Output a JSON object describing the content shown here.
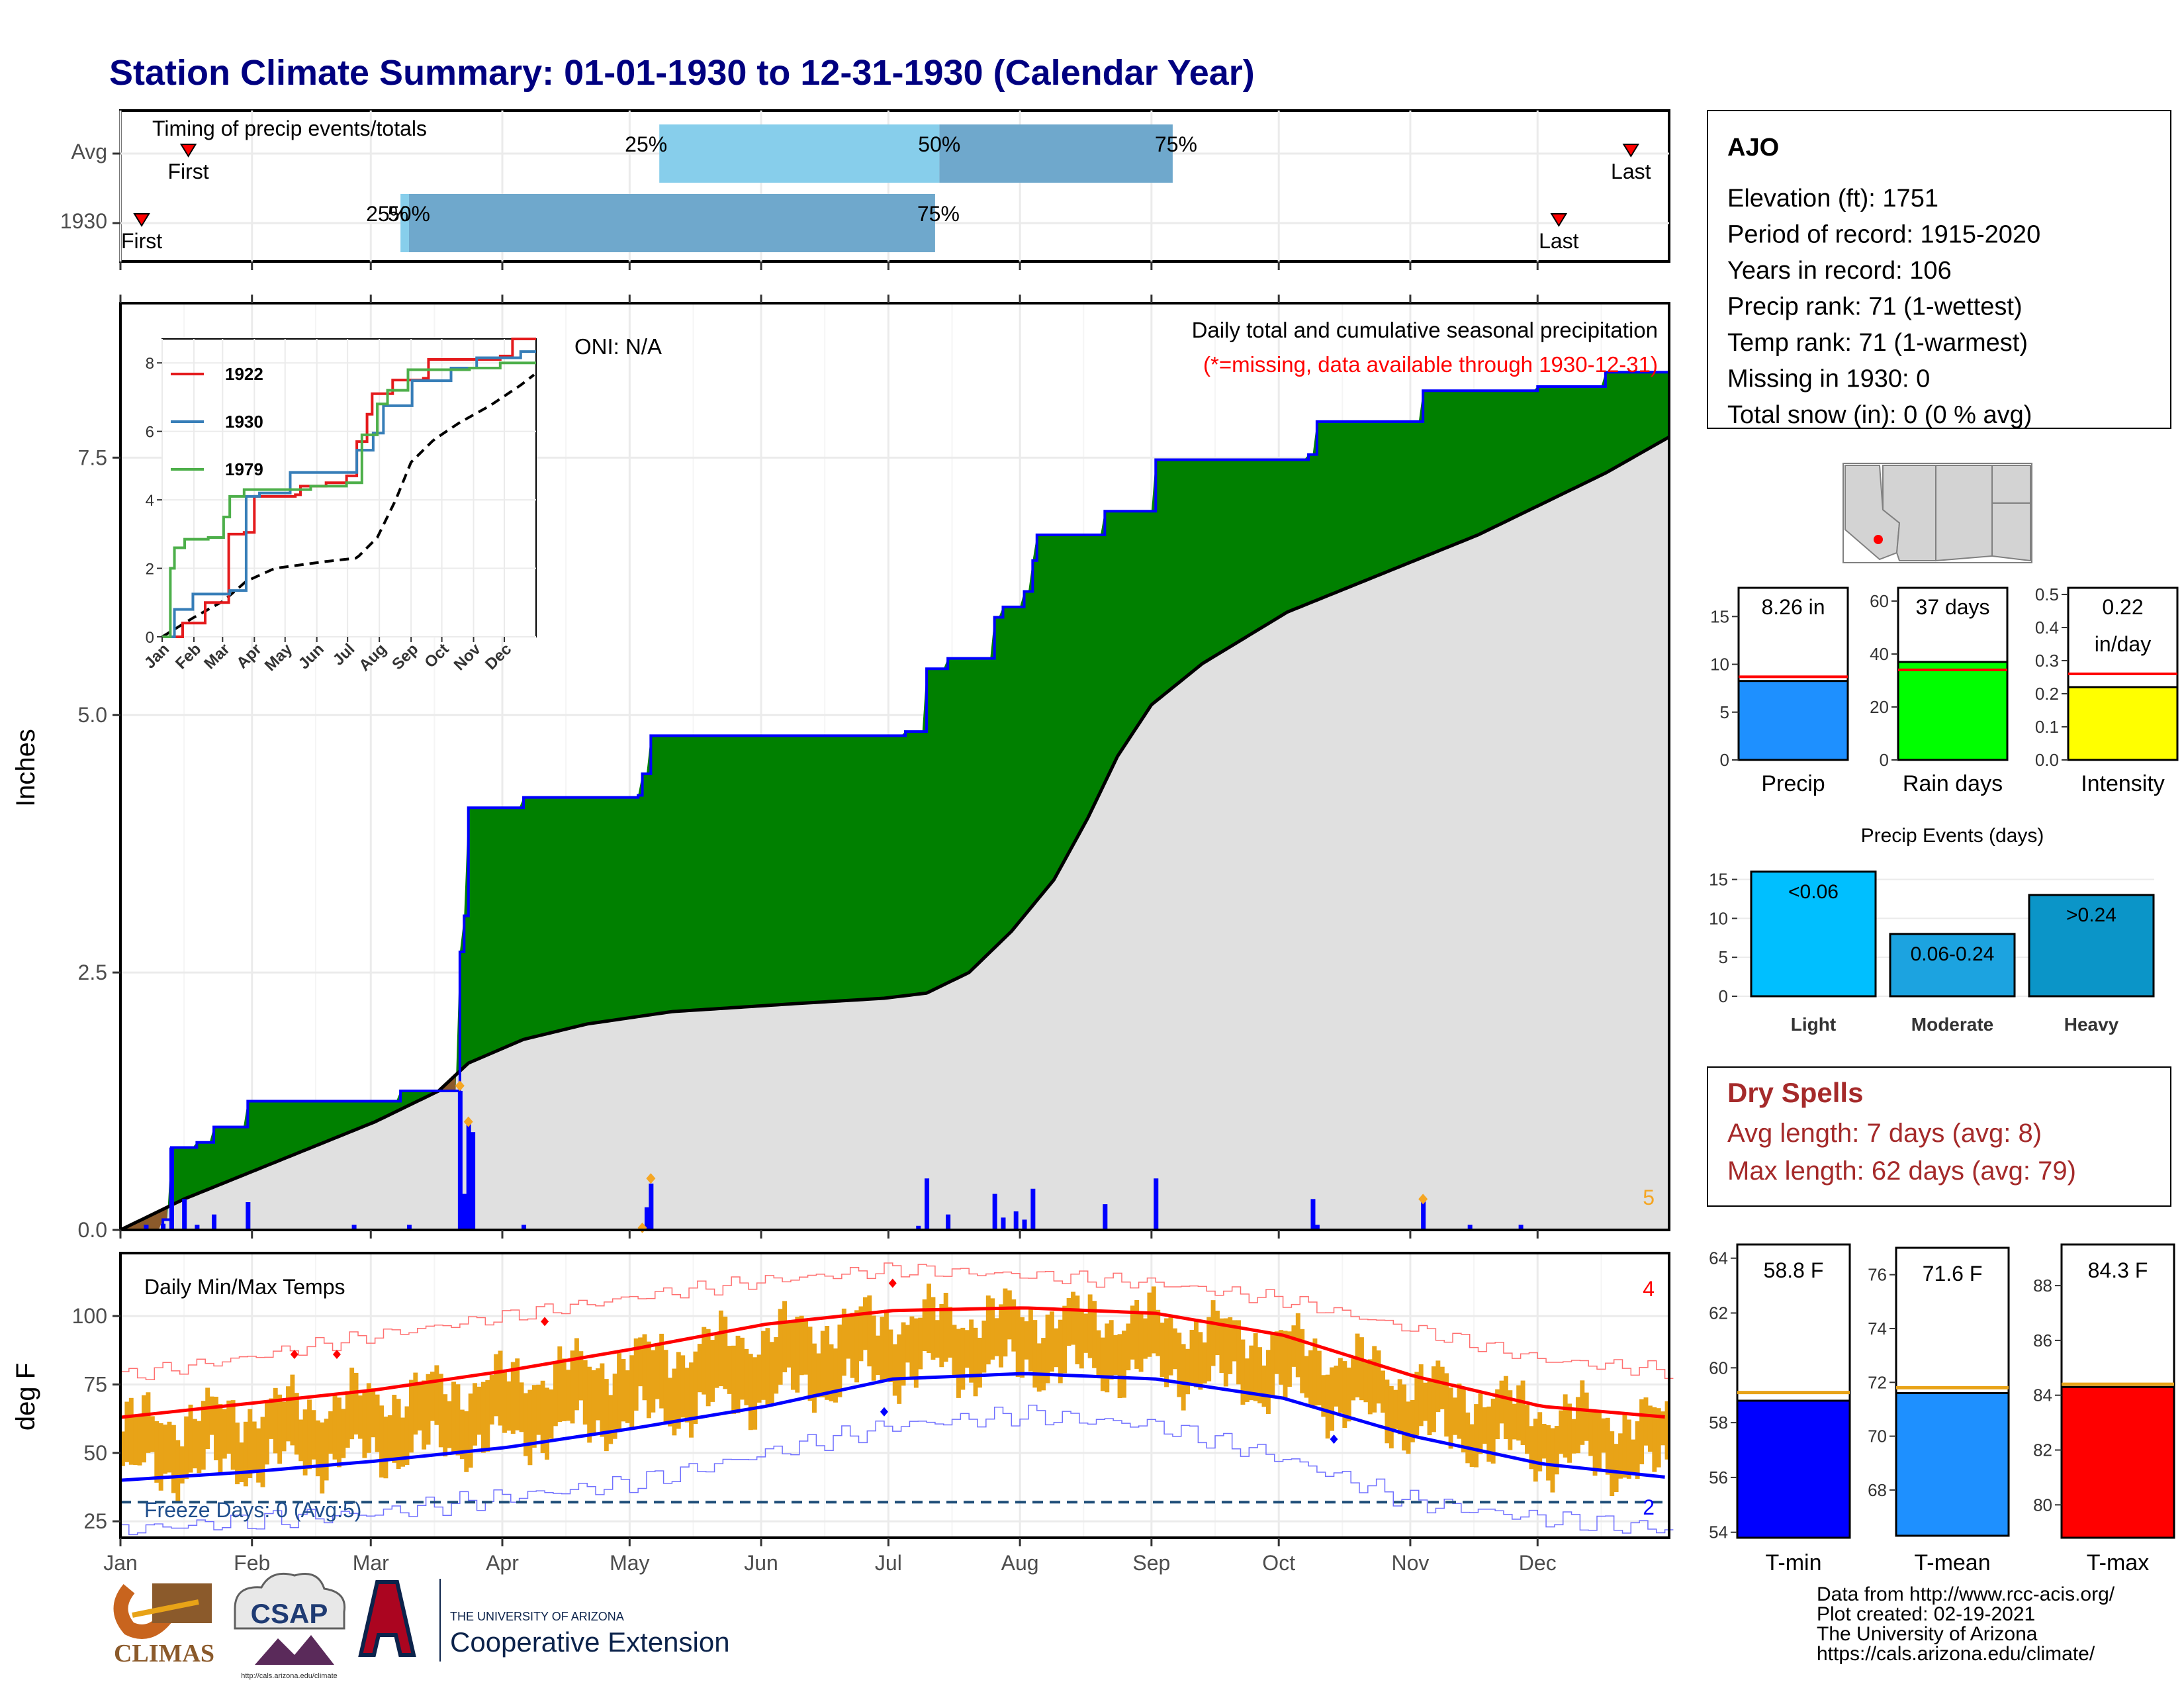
{
  "title": "Station Climate Summary: 01-01-1930 to 12-31-1930 (Calendar Year)",
  "months": [
    "Jan",
    "Feb",
    "Mar",
    "Apr",
    "May",
    "Jun",
    "Jul",
    "Aug",
    "Sep",
    "Oct",
    "Nov",
    "Dec"
  ],
  "colors": {
    "title": "#000080",
    "green": "#008000",
    "blue": "#0000ff",
    "grey_fill": "#e0e0e0",
    "brown": "#8b5a2b",
    "orange": "#f5a623",
    "red": "#ff0000",
    "light_blue": "#87ceeb",
    "steel_blue": "#6fa8cc",
    "dry_red": "#a52a2a",
    "gold": "#e8a317"
  },
  "timing_panel": {
    "title": "Timing of precip events/totals",
    "rows": [
      "Avg",
      "1930"
    ],
    "avg": {
      "first_doy": 16,
      "last_doy": 356,
      "q25_doy": 127,
      "q50_doy": 193,
      "q75_doy": 248,
      "first_label": "First",
      "last_label": "Last",
      "q25_label": "25%",
      "q50_label": "50%",
      "q75_label": "75%"
    },
    "year": {
      "first_doy": 5,
      "last_doy": 339,
      "q25_doy": 66,
      "q50_doy": 68,
      "q75_doy": 192,
      "first_label": "First",
      "last_label": "Last",
      "q25_label": "25%",
      "q50_label": "50%",
      "q75_label": "75%"
    }
  },
  "precip_panel": {
    "ylabel": "Inches",
    "yticks": [
      0.0,
      2.5,
      5.0,
      7.5
    ],
    "ytick_labels": [
      "0.0",
      "2.5",
      "5.0",
      "7.5"
    ],
    "ylim": [
      0,
      9.0
    ],
    "title": "Daily total and cumulative seasonal precipitation",
    "subtitle": "(*=missing, data available through 1930-12-31)",
    "oni_label": "ONI: N/A",
    "corner_count": "5",
    "cumulative_1930": [
      [
        0,
        0.0
      ],
      [
        10,
        0.1
      ],
      [
        12,
        0.8
      ],
      [
        18,
        0.85
      ],
      [
        22,
        1.0
      ],
      [
        30,
        1.0
      ],
      [
        30,
        1.25
      ],
      [
        60,
        1.25
      ],
      [
        66,
        1.35
      ],
      [
        79,
        1.35
      ],
      [
        80,
        2.7
      ],
      [
        81,
        3.05
      ],
      [
        82,
        4.1
      ],
      [
        95,
        4.2
      ],
      [
        122,
        4.22
      ],
      [
        123,
        4.43
      ],
      [
        125,
        4.8
      ],
      [
        185,
        4.84
      ],
      [
        190,
        5.45
      ],
      [
        195,
        5.55
      ],
      [
        206,
        5.95
      ],
      [
        208,
        6.05
      ],
      [
        213,
        6.2
      ],
      [
        215,
        6.5
      ],
      [
        216,
        6.75
      ],
      [
        232,
        6.98
      ],
      [
        244,
        7.48
      ],
      [
        280,
        7.53
      ],
      [
        282,
        7.85
      ],
      [
        306,
        7.85
      ],
      [
        307,
        8.15
      ],
      [
        334,
        8.19
      ],
      [
        350,
        8.33
      ],
      [
        365,
        8.33
      ]
    ],
    "cumulative_avg": [
      [
        0,
        0.0
      ],
      [
        15,
        0.3
      ],
      [
        30,
        0.55
      ],
      [
        45,
        0.8
      ],
      [
        60,
        1.05
      ],
      [
        75,
        1.35
      ],
      [
        82,
        1.62
      ],
      [
        95,
        1.85
      ],
      [
        110,
        2.0
      ],
      [
        130,
        2.12
      ],
      [
        160,
        2.2
      ],
      [
        180,
        2.25
      ],
      [
        190,
        2.3
      ],
      [
        200,
        2.5
      ],
      [
        210,
        2.9
      ],
      [
        220,
        3.4
      ],
      [
        228,
        4.0
      ],
      [
        235,
        4.6
      ],
      [
        243,
        5.1
      ],
      [
        255,
        5.5
      ],
      [
        265,
        5.75
      ],
      [
        275,
        6.0
      ],
      [
        290,
        6.25
      ],
      [
        305,
        6.5
      ],
      [
        320,
        6.75
      ],
      [
        335,
        7.05
      ],
      [
        350,
        7.35
      ],
      [
        365,
        7.7
      ]
    ],
    "daily_bars": [
      [
        6,
        0.05
      ],
      [
        10,
        0.06
      ],
      [
        12,
        0.8
      ],
      [
        15,
        0.3
      ],
      [
        18,
        0.05
      ],
      [
        22,
        0.15
      ],
      [
        30,
        0.27
      ],
      [
        55,
        0.05
      ],
      [
        68,
        0.05
      ],
      [
        80,
        1.35
      ],
      [
        81,
        0.35
      ],
      [
        82,
        1.05
      ],
      [
        83,
        0.95
      ],
      [
        95,
        0.05
      ],
      [
        124,
        0.22
      ],
      [
        125,
        0.45
      ],
      [
        188,
        0.04
      ],
      [
        190,
        0.5
      ],
      [
        195,
        0.15
      ],
      [
        206,
        0.35
      ],
      [
        208,
        0.12
      ],
      [
        211,
        0.18
      ],
      [
        213,
        0.1
      ],
      [
        215,
        0.4
      ],
      [
        232,
        0.25
      ],
      [
        244,
        0.5
      ],
      [
        281,
        0.3
      ],
      [
        282,
        0.05
      ],
      [
        307,
        0.3
      ],
      [
        318,
        0.05
      ],
      [
        330,
        0.05
      ]
    ],
    "missing_markers": [
      [
        80,
        1.4
      ],
      [
        82,
        1.05
      ],
      [
        123,
        0.02
      ],
      [
        125,
        0.5
      ],
      [
        307,
        0.3
      ]
    ]
  },
  "inset": {
    "yticks": [
      0,
      2,
      4,
      6,
      8
    ],
    "ytick_labels": [
      "0",
      "2",
      "4",
      "6",
      "8"
    ],
    "ylim": [
      0,
      8.7
    ],
    "months": [
      "Jan",
      "Feb",
      "Mar",
      "Apr",
      "May",
      "Jun",
      "Jul",
      "Aug",
      "Sep",
      "Oct",
      "Nov",
      "Dec"
    ],
    "series": [
      {
        "name": "1922",
        "color": "#e41a1c",
        "points": [
          [
            0,
            0
          ],
          [
            20,
            0.4
          ],
          [
            40,
            0.4
          ],
          [
            42,
            1.0
          ],
          [
            60,
            1.0
          ],
          [
            65,
            3.0
          ],
          [
            80,
            3.05
          ],
          [
            90,
            4.1
          ],
          [
            130,
            4.15
          ],
          [
            135,
            4.4
          ],
          [
            160,
            4.5
          ],
          [
            180,
            4.7
          ],
          [
            190,
            5.7
          ],
          [
            200,
            6.5
          ],
          [
            205,
            7.1
          ],
          [
            220,
            7.1
          ],
          [
            225,
            7.5
          ],
          [
            255,
            7.55
          ],
          [
            260,
            8.1
          ],
          [
            330,
            8.2
          ],
          [
            342,
            8.7
          ],
          [
            365,
            8.7
          ]
        ]
      },
      {
        "name": "1930",
        "color": "#377eb8",
        "points": [
          [
            0,
            0
          ],
          [
            12,
            0.8
          ],
          [
            30,
            1.25
          ],
          [
            66,
            1.35
          ],
          [
            82,
            4.1
          ],
          [
            95,
            4.2
          ],
          [
            125,
            4.8
          ],
          [
            190,
            5.45
          ],
          [
            206,
            5.95
          ],
          [
            216,
            6.75
          ],
          [
            244,
            7.48
          ],
          [
            282,
            7.85
          ],
          [
            307,
            8.15
          ],
          [
            350,
            8.33
          ],
          [
            365,
            8.33
          ]
        ]
      },
      {
        "name": "1979",
        "color": "#4daf4a",
        "points": [
          [
            0,
            0
          ],
          [
            8,
            2.0
          ],
          [
            12,
            2.6
          ],
          [
            22,
            2.85
          ],
          [
            45,
            2.9
          ],
          [
            60,
            3.5
          ],
          [
            66,
            4.1
          ],
          [
            80,
            4.3
          ],
          [
            145,
            4.4
          ],
          [
            180,
            4.5
          ],
          [
            195,
            5.9
          ],
          [
            210,
            6.8
          ],
          [
            220,
            7.2
          ],
          [
            240,
            7.8
          ],
          [
            300,
            7.85
          ],
          [
            330,
            8.0
          ],
          [
            365,
            8.0
          ]
        ]
      }
    ],
    "avg_points": [
      [
        0,
        0
      ],
      [
        30,
        0.55
      ],
      [
        60,
        1.05
      ],
      [
        82,
        1.62
      ],
      [
        110,
        2.0
      ],
      [
        160,
        2.2
      ],
      [
        190,
        2.3
      ],
      [
        210,
        2.9
      ],
      [
        228,
        4.0
      ],
      [
        243,
        5.1
      ],
      [
        265,
        5.75
      ],
      [
        290,
        6.25
      ],
      [
        320,
        6.75
      ],
      [
        350,
        7.35
      ],
      [
        365,
        7.7
      ]
    ]
  },
  "temp_panel": {
    "ylabel": "deg F",
    "title": "Daily Min/Max Temps",
    "yticks": [
      25,
      50,
      75,
      100
    ],
    "ytick_labels": [
      "25",
      "50",
      "75",
      "100"
    ],
    "ylim": [
      19,
      123
    ],
    "freeze_label": "Freeze Days: 0 (Avg:5)",
    "freeze_line": 32,
    "corner_top": "4",
    "corner_bottom": "2",
    "avg_max_anchors": [
      [
        0,
        63
      ],
      [
        30,
        68
      ],
      [
        60,
        73
      ],
      [
        91,
        80
      ],
      [
        121,
        88
      ],
      [
        152,
        97
      ],
      [
        182,
        102
      ],
      [
        213,
        103
      ],
      [
        244,
        101
      ],
      [
        274,
        93
      ],
      [
        305,
        78
      ],
      [
        335,
        67
      ],
      [
        365,
        63
      ]
    ],
    "avg_min_anchors": [
      [
        0,
        40
      ],
      [
        30,
        43
      ],
      [
        60,
        47
      ],
      [
        91,
        52
      ],
      [
        121,
        59
      ],
      [
        152,
        67
      ],
      [
        182,
        77
      ],
      [
        213,
        79
      ],
      [
        244,
        77
      ],
      [
        274,
        70
      ],
      [
        305,
        56
      ],
      [
        335,
        46
      ],
      [
        365,
        41
      ]
    ],
    "record_high_anchors": [
      [
        0,
        78
      ],
      [
        30,
        85
      ],
      [
        60,
        93
      ],
      [
        91,
        100
      ],
      [
        121,
        107
      ],
      [
        152,
        113
      ],
      [
        182,
        117
      ],
      [
        213,
        115
      ],
      [
        244,
        112
      ],
      [
        274,
        106
      ],
      [
        305,
        95
      ],
      [
        335,
        84
      ],
      [
        365,
        80
      ]
    ],
    "record_low_anchors": [
      [
        0,
        22
      ],
      [
        30,
        25
      ],
      [
        60,
        28
      ],
      [
        91,
        34
      ],
      [
        121,
        39
      ],
      [
        152,
        50
      ],
      [
        182,
        60
      ],
      [
        213,
        64
      ],
      [
        244,
        60
      ],
      [
        274,
        48
      ],
      [
        305,
        32
      ],
      [
        335,
        26
      ],
      [
        365,
        22
      ]
    ],
    "record_high_markers": [
      [
        41,
        86
      ],
      [
        51,
        86
      ],
      [
        100,
        98
      ],
      [
        182,
        112
      ]
    ],
    "record_low_markers": [
      [
        180,
        65
      ],
      [
        286,
        55
      ]
    ]
  },
  "station_box": {
    "name": "AJO",
    "lines": [
      "Elevation (ft): 1751",
      "Period of record: 1915-2020",
      "Years in record: 106",
      "Precip rank: 71 (1-wettest)",
      "Temp rank: 71 (1-warmest)",
      "Missing in 1930: 0",
      "Total snow (in): 0 (0 % avg)"
    ]
  },
  "summary_bars": [
    {
      "label": "Precip",
      "value": 8.26,
      "avg": 8.7,
      "value_label": "8.26 in",
      "ylim": [
        0,
        18
      ],
      "yticks": [
        0,
        5,
        10,
        15
      ],
      "ytick_labels": [
        "0",
        "5",
        "10",
        "15"
      ],
      "color": "#1e90ff"
    },
    {
      "label": "Rain days",
      "value": 37,
      "avg": 34,
      "value_label": "37 days",
      "ylim": [
        0,
        65
      ],
      "yticks": [
        0,
        20,
        40,
        60
      ],
      "ytick_labels": [
        "0",
        "20",
        "40",
        "60"
      ],
      "color": "#00ff00"
    },
    {
      "label": "Intensity",
      "value": 0.22,
      "value_label": "0.22",
      "value_label2": "in/day",
      "avg": 0.26,
      "ylim": [
        0,
        0.52
      ],
      "yticks": [
        0.0,
        0.1,
        0.2,
        0.3,
        0.4,
        0.5
      ],
      "ytick_labels": [
        "0.0",
        "0.1",
        "0.2",
        "0.3",
        "0.4",
        "0.5"
      ],
      "color": "#ffff00"
    }
  ],
  "precip_events": {
    "title": "Precip Events (days)",
    "ylim": [
      0,
      17
    ],
    "yticks": [
      0,
      5,
      10,
      15
    ],
    "ytick_labels": [
      "0",
      "5",
      "10",
      "15"
    ],
    "bars": [
      {
        "label": "Light",
        "value": 16,
        "value_label": "<0.06",
        "color": "#00bfff"
      },
      {
        "label": "Moderate",
        "value": 8,
        "value_label": "0.06-0.24",
        "color": "#1ca3e0"
      },
      {
        "label": "Heavy",
        "value": 13,
        "value_label": ">0.24",
        "color": "#0b95c8"
      }
    ]
  },
  "dry_spells": {
    "title": "Dry Spells",
    "avg_line": "Avg length: 7 days (avg: 8)",
    "max_line": "Max length: 62 days (avg: 79)"
  },
  "temp_bars": [
    {
      "label": "T-min",
      "value": 58.8,
      "avg": 59.1,
      "value_label": "58.8 F",
      "ylim": [
        53.8,
        64.5
      ],
      "yticks": [
        54,
        56,
        58,
        60,
        62,
        64
      ],
      "ytick_labels": [
        "54",
        "56",
        "58",
        "60",
        "62",
        "64"
      ],
      "color": "#0000ff"
    },
    {
      "label": "T-mean",
      "value": 71.6,
      "avg": 71.8,
      "value_label": "71.6 F",
      "ylim": [
        66.3,
        77.0
      ],
      "yticks": [
        68,
        70,
        72,
        74,
        76
      ],
      "ytick_labels": [
        "68",
        "70",
        "72",
        "74",
        "76"
      ],
      "color": "#1e90ff"
    },
    {
      "label": "T-max",
      "value": 84.3,
      "avg": 84.4,
      "value_label": "84.3 F",
      "ylim": [
        78.8,
        89.5
      ],
      "yticks": [
        80,
        82,
        84,
        86,
        88
      ],
      "ytick_labels": [
        "80",
        "82",
        "84",
        "86",
        "88"
      ],
      "color": "#ff0000"
    }
  ],
  "credits": [
    "Data from http://www.rcc-acis.org/",
    "Plot created: 02-19-2021",
    "The University of Arizona",
    "https://cals.arizona.edu/climate/"
  ],
  "logos": {
    "climas": "CLIMAS",
    "csap": "CSAP",
    "csap_url": "http://cals.arizona.edu/climate",
    "ua_small": "THE UNIVERSITY OF ARIZONA",
    "ua_big": "Cooperative Extension"
  }
}
